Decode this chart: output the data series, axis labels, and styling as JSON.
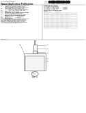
{
  "bg_color": "#ffffff",
  "text_dark": "#222222",
  "text_med": "#555555",
  "text_light": "#888888",
  "line_color": "#777777",
  "diagram_edge": "#555555",
  "diagram_face": "#f5f5f5",
  "barcode_color": "#111111"
}
